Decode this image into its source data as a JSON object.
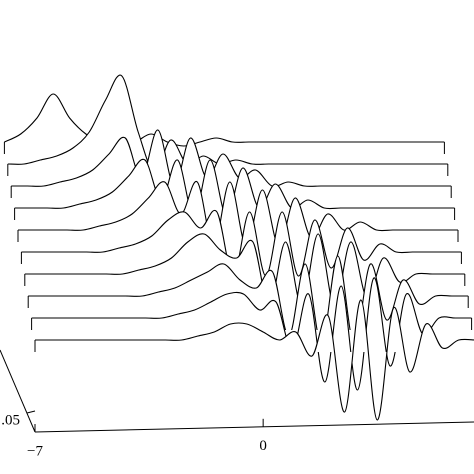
{
  "chart_data": {
    "type": "waterfall",
    "x": [
      -7,
      -6.5,
      -6,
      -5.5,
      -5,
      -4.5,
      -4,
      -3.5,
      -3,
      -2.5,
      -2,
      -1.5,
      -1,
      -0.5,
      0,
      0.5,
      1,
      1.5,
      2,
      2.5,
      3,
      3.5,
      4,
      4.5,
      5,
      5.5,
      6,
      6.5
    ],
    "xlim": [
      -7,
      6.5
    ],
    "xticks": [
      {
        "value": -7,
        "label": "−7"
      },
      0
    ],
    "zticks": [
      {
        "value": 0.05,
        "label": ".05"
      }
    ],
    "color": "#000000",
    "series": [
      {
        "values": [
          0,
          0,
          0,
          0,
          0,
          0,
          0,
          0,
          0,
          0,
          0.005,
          0.01,
          0.02,
          0.02,
          0.01,
          0,
          0.01,
          -0.02,
          0.03,
          -0.09,
          0.05,
          -0.1,
          0.04,
          -0.04,
          0.02,
          -0.01,
          0,
          0
        ]
      },
      {
        "values": [
          0,
          0,
          0,
          0,
          0,
          0,
          0,
          0,
          0,
          0.005,
          0.01,
          0.02,
          0.03,
          0.03,
          0.01,
          0.02,
          -0.04,
          0.03,
          -0.08,
          0.04,
          -0.09,
          0.05,
          -0.06,
          0.03,
          -0.02,
          0,
          0,
          0
        ]
      },
      {
        "values": [
          0,
          0,
          0,
          0,
          0,
          0,
          0,
          0,
          0.005,
          0.01,
          0.02,
          0.03,
          0.04,
          0.02,
          0.01,
          0.03,
          -0.05,
          0.04,
          -0.06,
          0.05,
          -0.06,
          0.04,
          -0.03,
          0.02,
          -0.01,
          0,
          0,
          0
        ]
      },
      {
        "values": [
          0,
          0,
          0,
          0,
          0,
          0,
          0,
          0.005,
          0.01,
          0.02,
          0.04,
          0.05,
          0.03,
          0.02,
          0.04,
          -0.04,
          0.04,
          -0.04,
          0.05,
          -0.04,
          0.04,
          -0.03,
          0.02,
          -0.01,
          0,
          0,
          0,
          0
        ]
      },
      {
        "values": [
          0,
          0,
          0,
          0,
          0,
          0,
          0.005,
          0.01,
          0.02,
          0.04,
          0.05,
          0.03,
          0.05,
          -0.03,
          0.05,
          -0.03,
          0.05,
          -0.03,
          0.04,
          -0.02,
          0.03,
          -0.01,
          0.01,
          0,
          0,
          0,
          0,
          0
        ]
      },
      {
        "values": [
          0,
          0,
          0,
          0,
          0,
          0.005,
          0.01,
          0.02,
          0.04,
          0.06,
          0.02,
          0.06,
          -0.02,
          0.06,
          -0.02,
          0.05,
          -0.02,
          0.04,
          -0.01,
          0.02,
          0,
          0.01,
          0,
          0,
          0,
          0,
          0,
          0
        ]
      },
      {
        "values": [
          0,
          0,
          0,
          0,
          0.005,
          0.01,
          0.02,
          0.04,
          0.06,
          0.01,
          0.06,
          -0.01,
          0.06,
          -0.01,
          0.05,
          0,
          0.03,
          0,
          0.01,
          0,
          0,
          0,
          0,
          0,
          0,
          0,
          0,
          0
        ]
      },
      {
        "values": [
          0,
          0,
          0,
          0.005,
          0.01,
          0.02,
          0.04,
          0.06,
          0.01,
          0.07,
          0,
          0.06,
          0.01,
          0.04,
          0.01,
          0.02,
          0,
          0.005,
          0,
          0,
          0,
          0,
          0,
          0,
          0,
          0,
          0,
          0
        ]
      },
      {
        "values": [
          0,
          0,
          0.005,
          0.01,
          0.02,
          0.04,
          0.08,
          0.11,
          0.04,
          -0.01,
          0.03,
          0,
          0.01,
          0,
          0.005,
          0,
          0,
          0,
          0,
          0,
          0,
          0,
          0,
          0,
          0,
          0,
          0,
          0
        ]
      },
      {
        "values": [
          0,
          0.01,
          0.03,
          0.06,
          0.03,
          0.01,
          0,
          0,
          0,
          0.01,
          0,
          -0.005,
          0,
          0.005,
          0,
          0,
          0,
          0,
          0,
          0,
          0,
          0,
          0,
          0,
          0,
          0,
          0,
          0
        ]
      }
    ]
  }
}
